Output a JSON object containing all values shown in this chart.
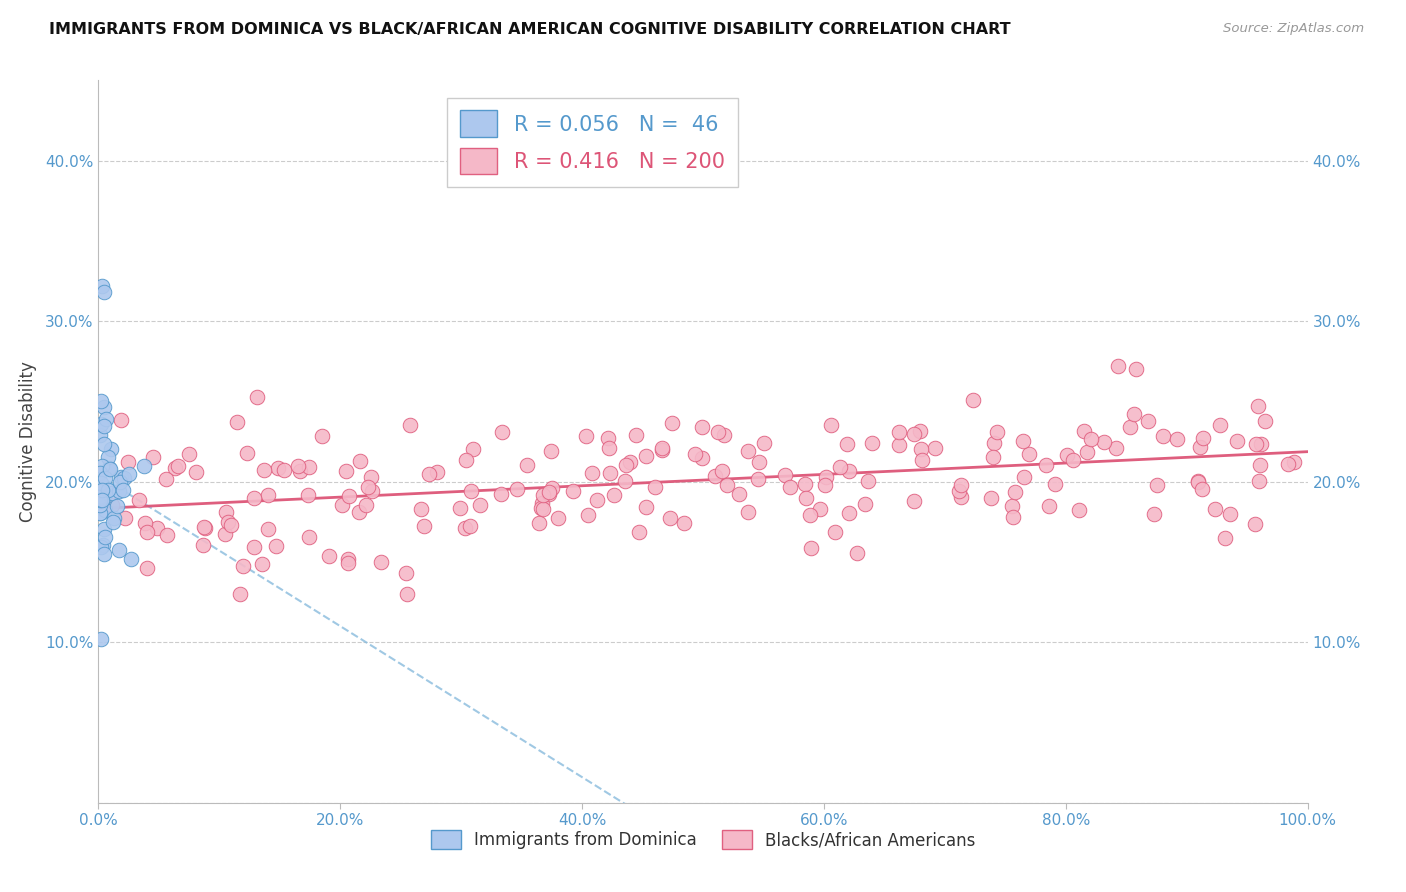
{
  "title": "IMMIGRANTS FROM DOMINICA VS BLACK/AFRICAN AMERICAN COGNITIVE DISABILITY CORRELATION CHART",
  "source": "Source: ZipAtlas.com",
  "ylabel": "Cognitive Disability",
  "background_color": "#ffffff",
  "grid_color": "#cccccc",
  "blue_color": "#adc8ee",
  "blue_edge_color": "#5599cc",
  "blue_line_color": "#88bbdd",
  "pink_color": "#f5b8c8",
  "pink_edge_color": "#e06080",
  "pink_line_color": "#dd5577",
  "tick_color": "#5599cc",
  "blue_R": 0.056,
  "blue_N": 46,
  "pink_R": 0.416,
  "pink_N": 200,
  "xmin": 0.0,
  "xmax": 1.0,
  "ymin": 0.0,
  "ymax": 0.45,
  "xtick_labels": [
    "0.0%",
    "20.0%",
    "40.0%",
    "60.0%",
    "80.0%",
    "100.0%"
  ],
  "ytick_labels": [
    "",
    "10.0%",
    "20.0%",
    "30.0%",
    "40.0%"
  ]
}
